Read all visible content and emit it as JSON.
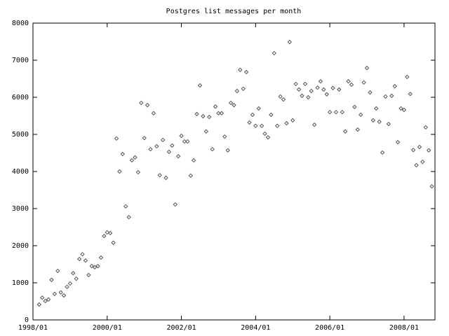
{
  "chart_data": {
    "type": "scatter",
    "title": "Postgres list messages per month",
    "x": [
      "1998/03",
      "1998/04",
      "1998/05",
      "1998/06",
      "1998/07",
      "1998/08",
      "1998/09",
      "1998/10",
      "1998/11",
      "1998/12",
      "1999/01",
      "1999/02",
      "1999/03",
      "1999/04",
      "1999/05",
      "1999/06",
      "1999/07",
      "1999/08",
      "1999/09",
      "1999/10",
      "1999/11",
      "1999/12",
      "2000/01",
      "2000/02",
      "2000/03",
      "2000/04",
      "2000/05",
      "2000/06",
      "2000/07",
      "2000/08",
      "2000/09",
      "2000/10",
      "2000/11",
      "2000/12",
      "2001/01",
      "2001/02",
      "2001/03",
      "2001/04",
      "2001/05",
      "2001/06",
      "2001/07",
      "2001/08",
      "2001/09",
      "2001/10",
      "2001/11",
      "2001/12",
      "2002/01",
      "2002/02",
      "2002/03",
      "2002/04",
      "2002/05",
      "2002/06",
      "2002/07",
      "2002/08",
      "2002/09",
      "2002/10",
      "2002/11",
      "2002/12",
      "2003/01",
      "2003/02",
      "2003/03",
      "2003/04",
      "2003/05",
      "2003/06",
      "2003/07",
      "2003/08",
      "2003/09",
      "2003/10",
      "2003/11",
      "2003/12",
      "2004/01",
      "2004/02",
      "2004/03",
      "2004/04",
      "2004/05",
      "2004/06",
      "2004/07",
      "2004/08",
      "2004/09",
      "2004/10",
      "2004/11",
      "2004/12",
      "2005/01",
      "2005/02",
      "2005/03",
      "2005/04",
      "2005/05",
      "2005/06",
      "2005/07",
      "2005/08",
      "2005/09",
      "2005/10",
      "2005/11",
      "2005/12",
      "2006/01",
      "2006/02",
      "2006/03",
      "2006/04",
      "2006/05",
      "2006/06",
      "2006/07",
      "2006/08",
      "2006/09",
      "2006/10",
      "2006/11",
      "2006/12",
      "2007/01",
      "2007/02",
      "2007/03",
      "2007/04",
      "2007/05",
      "2007/06",
      "2007/07",
      "2007/08",
      "2007/09",
      "2007/10",
      "2007/11",
      "2007/12",
      "2008/01",
      "2008/02",
      "2008/03",
      "2008/04",
      "2008/05",
      "2008/06",
      "2008/07",
      "2008/08",
      "2008/09",
      "2008/10"
    ],
    "values": [
      415,
      600,
      510,
      550,
      1080,
      700,
      1320,
      740,
      660,
      890,
      980,
      1260,
      1110,
      1640,
      1770,
      1600,
      1210,
      1450,
      1420,
      1450,
      1680,
      2260,
      2360,
      2340,
      2080,
      4890,
      4000,
      4470,
      3060,
      2770,
      4300,
      4380,
      3980,
      5850,
      4900,
      5790,
      4600,
      5570,
      4680,
      3900,
      4850,
      3830,
      4530,
      4700,
      3110,
      4410,
      4960,
      4810,
      4810,
      3890,
      4300,
      5550,
      6320,
      5490,
      5080,
      5470,
      4600,
      5750,
      5570,
      5570,
      4940,
      4570,
      5850,
      5790,
      6170,
      6740,
      6230,
      6680,
      5320,
      5530,
      5230,
      5700,
      5230,
      5020,
      4920,
      5530,
      7190,
      5230,
      6020,
      5940,
      5300,
      7490,
      5380,
      6360,
      6210,
      6040,
      6360,
      6000,
      6170,
      5260,
      6260,
      6430,
      6210,
      6080,
      5600,
      6250,
      5600,
      6210,
      5600,
      5080,
      6430,
      6340,
      5740,
      5130,
      5530,
      6400,
      6790,
      6130,
      5380,
      5700,
      5340,
      4510,
      6020,
      5280,
      6040,
      6300,
      4790,
      5700,
      5660,
      6550,
      6090,
      4580,
      4170,
      4660,
      4260,
      5190,
      4570,
      3600
    ],
    "color": "#555555",
    "xlim": [
      "1998/01",
      "2008/11"
    ],
    "xticks": [
      "1998/01",
      "2000/01",
      "2002/01",
      "2004/01",
      "2006/01",
      "2008/01"
    ],
    "ylim": [
      0,
      8000
    ],
    "yticks": [
      0,
      1000,
      2000,
      3000,
      4000,
      5000,
      6000,
      7000,
      8000
    ]
  }
}
